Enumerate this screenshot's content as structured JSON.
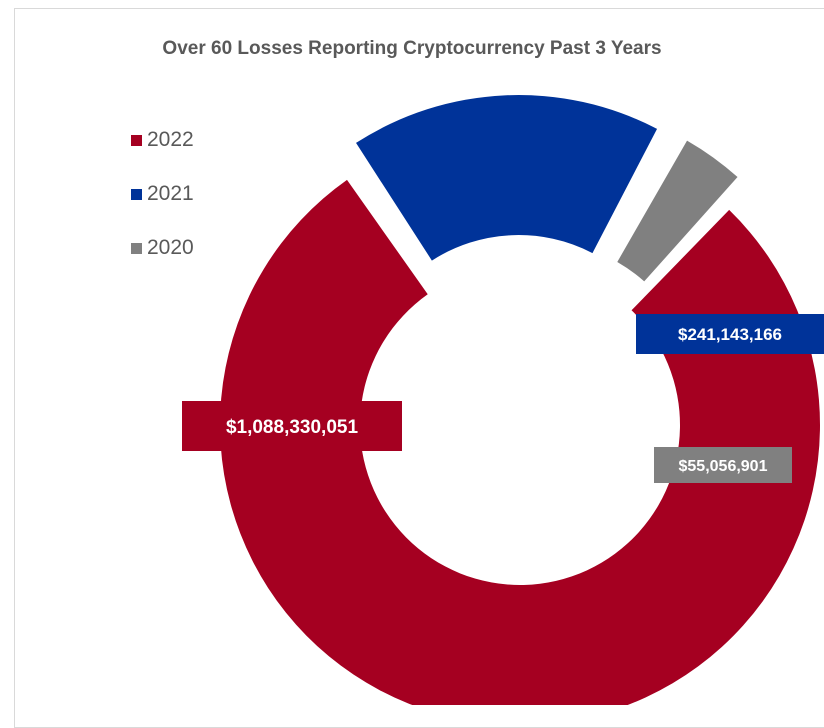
{
  "chart_data": {
    "type": "pie",
    "title": "Over 60 Losses Reporting Cryptocurrency Past 3 Years",
    "donut": true,
    "categories": [
      "2022",
      "2021",
      "2020"
    ],
    "values": [
      1088330051,
      241143166,
      55056901
    ],
    "data_labels": [
      "$1,088,330,051",
      "$241,143,166",
      "$55,056,901"
    ],
    "colors": [
      "#a50021",
      "#003399",
      "#808080"
    ],
    "legend_position": "top-left"
  }
}
